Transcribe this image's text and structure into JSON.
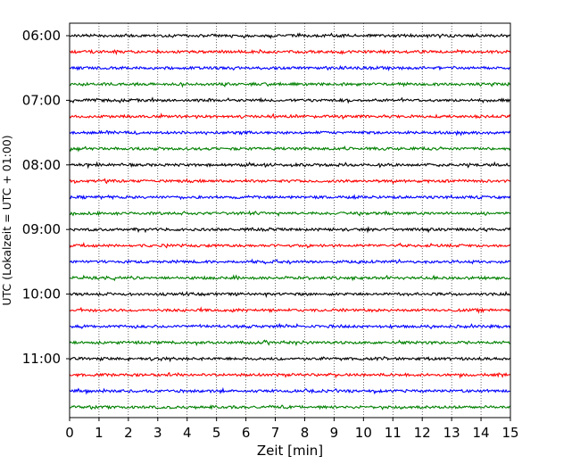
{
  "chart_data": {
    "type": "line",
    "title": "",
    "xlabel": "Zeit  [min]",
    "ylabel": "UTC (Lokalzeit = UTC + 01:00)",
    "xlim": [
      0,
      15
    ],
    "x_ticks": [
      "0",
      "1",
      "2",
      "3",
      "4",
      "5",
      "6",
      "7",
      "8",
      "9",
      "10",
      "11",
      "12",
      "13",
      "14",
      "15"
    ],
    "grid": "vertical dotted",
    "start_time": "06:00",
    "end_time": "11:45",
    "trace_interval_minutes": 15,
    "trace_colors": [
      "#000000",
      "#ff0000",
      "#0000ff",
      "#008000"
    ],
    "y_ticks": [
      {
        "label": "06:00",
        "trace_index": 0
      },
      {
        "label": "07:00",
        "trace_index": 4
      },
      {
        "label": "08:00",
        "trace_index": 8
      },
      {
        "label": "09:00",
        "trace_index": 12
      },
      {
        "label": "10:00",
        "trace_index": 16
      },
      {
        "label": "11:00",
        "trace_index": 20
      }
    ],
    "trace_count": 24,
    "series": [
      {
        "start": "06:00",
        "color": "#000000"
      },
      {
        "start": "06:15",
        "color": "#ff0000"
      },
      {
        "start": "06:30",
        "color": "#0000ff"
      },
      {
        "start": "06:45",
        "color": "#008000"
      },
      {
        "start": "07:00",
        "color": "#000000"
      },
      {
        "start": "07:15",
        "color": "#ff0000"
      },
      {
        "start": "07:30",
        "color": "#0000ff"
      },
      {
        "start": "07:45",
        "color": "#008000"
      },
      {
        "start": "08:00",
        "color": "#000000"
      },
      {
        "start": "08:15",
        "color": "#ff0000"
      },
      {
        "start": "08:30",
        "color": "#0000ff"
      },
      {
        "start": "08:45",
        "color": "#008000"
      },
      {
        "start": "09:00",
        "color": "#000000"
      },
      {
        "start": "09:15",
        "color": "#ff0000"
      },
      {
        "start": "09:30",
        "color": "#0000ff"
      },
      {
        "start": "09:45",
        "color": "#008000"
      },
      {
        "start": "10:00",
        "color": "#000000"
      },
      {
        "start": "10:15",
        "color": "#ff0000"
      },
      {
        "start": "10:30",
        "color": "#0000ff"
      },
      {
        "start": "10:45",
        "color": "#008000"
      },
      {
        "start": "11:00",
        "color": "#000000"
      },
      {
        "start": "11:15",
        "color": "#ff0000"
      },
      {
        "start": "11:30",
        "color": "#0000ff"
      },
      {
        "start": "11:45",
        "color": "#008000"
      }
    ]
  }
}
